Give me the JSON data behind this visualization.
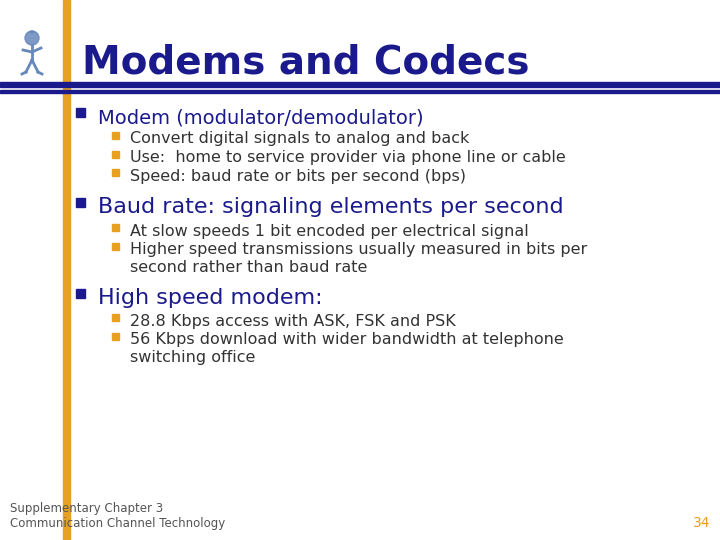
{
  "title": "Modems and Codecs",
  "title_color": "#1a1a8c",
  "title_fontsize": 28,
  "bg_color": "#ffffff",
  "left_bar_color": "#e8a020",
  "header_line_color": "#1a1a8c",
  "bullet_color": "#1a1a8c",
  "sub_bullet_color": "#e8a020",
  "text_color": "#1a1a8c",
  "sub_text_color": "#333333",
  "footer_text_color": "#555555",
  "page_number_color": "#e8a020",
  "footer_left": "Supplementary Chapter 3\nCommunication Channel Technology",
  "page_number": "34",
  "items": [
    {
      "type": "bullet",
      "text": "Modem (modulator/demodulator)",
      "fontsize": 14,
      "sub_items": [
        {
          "text": "Convert digital signals to analog and back",
          "lines": 1
        },
        {
          "text": "Use:  home to service provider via phone line or cable",
          "lines": 1
        },
        {
          "text": "Speed: baud rate or bits per second (bps)",
          "lines": 1
        }
      ]
    },
    {
      "type": "bullet",
      "text": "Baud rate: signaling elements per second",
      "fontsize": 16,
      "sub_items": [
        {
          "text": "At slow speeds 1 bit encoded per electrical signal",
          "lines": 1
        },
        {
          "text": "Higher speed transmissions usually measured in bits per\nsecond rather than baud rate",
          "lines": 2
        }
      ]
    },
    {
      "type": "bullet",
      "text": "High speed modem:",
      "fontsize": 16,
      "sub_items": [
        {
          "text": "28.8 Kbps access with ASK, FSK and PSK",
          "lines": 1
        },
        {
          "text": "56 Kbps download with wider bandwidth at telephone\nswitching office",
          "lines": 2
        }
      ]
    }
  ]
}
